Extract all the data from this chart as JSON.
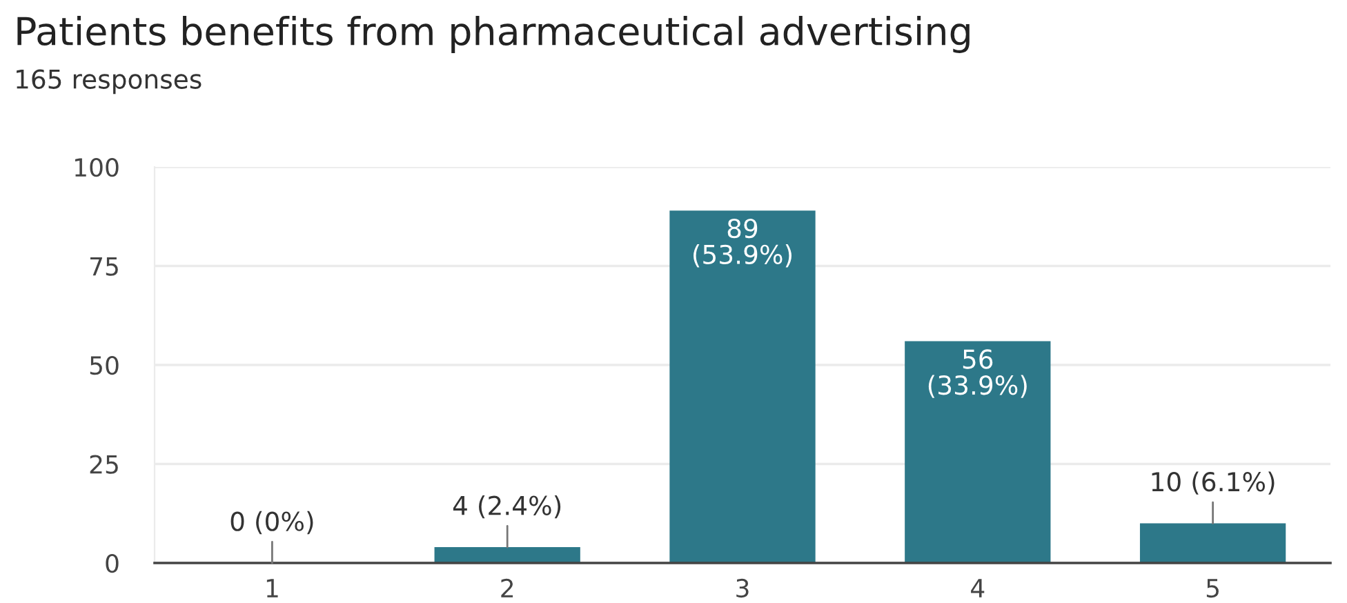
{
  "chart_data": {
    "type": "bar",
    "title": "Patients benefits from pharmaceutical advertising",
    "subtitle": "165 responses",
    "categories": [
      "1",
      "2",
      "3",
      "4",
      "5"
    ],
    "values": [
      0,
      4,
      89,
      56,
      10
    ],
    "color": "#2d7889",
    "value_labels": [
      "0 (0%)",
      "4 (2.4%)",
      "89\n(53.9%)",
      "56\n(33.9%)",
      "10 (6.1%)"
    ],
    "ylim": [
      0,
      100
    ],
    "yticks": [
      0,
      25,
      50,
      75,
      100
    ],
    "grid": "y",
    "legend": false
  }
}
